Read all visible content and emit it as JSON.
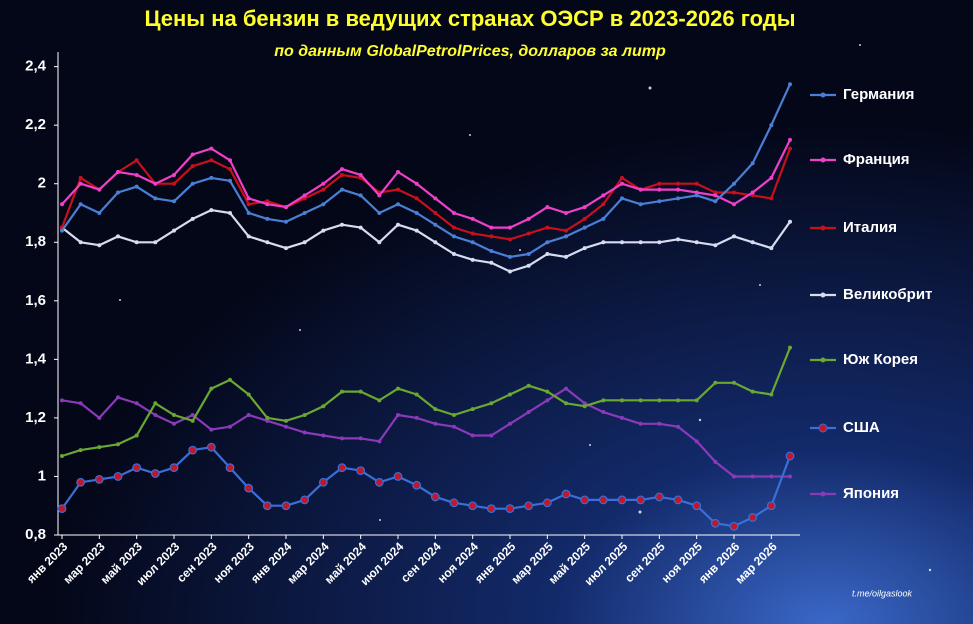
{
  "chart_data": {
    "type": "line",
    "title": "Цены на бензин в ведущих странах ОЭСР в 2023-2026 годы",
    "subtitle": "по данным  GlobalPetrolPrices,  долларов за литр",
    "source": "t.me/oilgaslook",
    "categories": [
      "янв 2023",
      null,
      "мар 2023",
      null,
      "май 2023",
      null,
      "июл 2023",
      null,
      "сен 2023",
      null,
      "ноя 2023",
      null,
      "янв 2024",
      null,
      "мар 2024",
      null,
      "май 2024",
      null,
      "июл 2024",
      null,
      "сен 2024",
      null,
      "ноя 2024",
      null,
      "янв 2025",
      null,
      "мар 2025",
      null,
      "май 2025",
      null,
      "июл 2025",
      null,
      "сен 2025",
      null,
      "ноя 2025",
      null,
      "янв 2026",
      null,
      "мар 2026",
      null
    ],
    "ylim": [
      0.8,
      2.45
    ],
    "yticks": [
      {
        "value": 0.8,
        "label": "0,8"
      },
      1,
      {
        "value": 1.2,
        "label": "1,2"
      },
      {
        "value": 1.4,
        "label": "1,4"
      },
      {
        "value": 1.6,
        "label": "1,6"
      },
      {
        "value": 1.8,
        "label": "1,8"
      },
      2,
      {
        "value": 2.2,
        "label": "2,2"
      },
      {
        "value": 2.4,
        "label": "2,4"
      }
    ],
    "series": [
      {
        "name": "Германия",
        "color": "#4a7fd6",
        "marker_color": "#4a7fd6",
        "values": [
          1.84,
          1.93,
          1.9,
          1.97,
          1.99,
          1.95,
          1.94,
          2.0,
          2.02,
          2.01,
          1.9,
          1.88,
          1.87,
          1.9,
          1.93,
          1.98,
          1.96,
          1.9,
          1.93,
          1.9,
          1.86,
          1.82,
          1.8,
          1.77,
          1.75,
          1.76,
          1.8,
          1.82,
          1.85,
          1.88,
          1.95,
          1.93,
          1.94,
          1.95,
          1.96,
          1.94,
          2.0,
          2.07,
          2.2,
          2.34
        ]
      },
      {
        "name": "Франция",
        "color": "#f040c8",
        "marker_color": "#f040c8",
        "values": [
          1.93,
          2.0,
          1.98,
          2.04,
          2.03,
          2.0,
          2.03,
          2.1,
          2.12,
          2.08,
          1.95,
          1.93,
          1.92,
          1.96,
          2.0,
          2.05,
          2.03,
          1.96,
          2.04,
          2.0,
          1.95,
          1.9,
          1.88,
          1.85,
          1.85,
          1.88,
          1.92,
          1.9,
          1.92,
          1.96,
          2.0,
          1.98,
          1.98,
          1.98,
          1.97,
          1.96,
          1.93,
          1.97,
          2.02,
          2.15
        ]
      },
      {
        "name": "Италия",
        "color": "#c8101c",
        "marker_color": "#c8101c",
        "values": [
          1.85,
          2.02,
          1.98,
          2.04,
          2.08,
          2.0,
          2.0,
          2.06,
          2.08,
          2.05,
          1.93,
          1.94,
          1.92,
          1.95,
          1.98,
          2.03,
          2.02,
          1.97,
          1.98,
          1.95,
          1.9,
          1.85,
          1.83,
          1.82,
          1.81,
          1.83,
          1.85,
          1.84,
          1.88,
          1.93,
          2.02,
          1.98,
          2.0,
          2.0,
          2.0,
          1.97,
          1.97,
          1.96,
          1.95,
          2.12
        ]
      },
      {
        "name": "Великобрит",
        "color": "#d8dcf0",
        "marker_color": "#d8dcf0",
        "values": [
          1.85,
          1.8,
          1.79,
          1.82,
          1.8,
          1.8,
          1.84,
          1.88,
          1.91,
          1.9,
          1.82,
          1.8,
          1.78,
          1.8,
          1.84,
          1.86,
          1.85,
          1.8,
          1.86,
          1.84,
          1.8,
          1.76,
          1.74,
          1.73,
          1.7,
          1.72,
          1.76,
          1.75,
          1.78,
          1.8,
          1.8,
          1.8,
          1.8,
          1.81,
          1.8,
          1.79,
          1.82,
          1.8,
          1.78,
          1.87
        ]
      },
      {
        "name": "Юж Корея",
        "color": "#6aa830",
        "marker_color": "#6aa830",
        "values": [
          1.07,
          1.09,
          1.1,
          1.11,
          1.14,
          1.25,
          1.21,
          1.19,
          1.3,
          1.33,
          1.28,
          1.2,
          1.19,
          1.21,
          1.24,
          1.29,
          1.29,
          1.26,
          1.3,
          1.28,
          1.23,
          1.21,
          1.23,
          1.25,
          1.28,
          1.31,
          1.29,
          1.25,
          1.24,
          1.26,
          1.26,
          1.26,
          1.26,
          1.26,
          1.26,
          1.32,
          1.32,
          1.29,
          1.28,
          1.44
        ]
      },
      {
        "name": "США",
        "color": "#3a6fd8",
        "marker_color": "#c0182a",
        "values": [
          0.89,
          0.98,
          0.99,
          1.0,
          1.03,
          1.01,
          1.03,
          1.09,
          1.1,
          1.03,
          0.96,
          0.9,
          0.9,
          0.92,
          0.98,
          1.03,
          1.02,
          0.98,
          1.0,
          0.97,
          0.93,
          0.91,
          0.9,
          0.89,
          0.89,
          0.9,
          0.91,
          0.94,
          0.92,
          0.92,
          0.92,
          0.92,
          0.93,
          0.92,
          0.9,
          0.84,
          0.83,
          0.86,
          0.9,
          1.07
        ]
      },
      {
        "name": "Япония",
        "color": "#8a3ab8",
        "marker_color": "#8a3ab8",
        "values": [
          1.26,
          1.25,
          1.2,
          1.27,
          1.25,
          1.21,
          1.18,
          1.21,
          1.16,
          1.17,
          1.21,
          1.19,
          1.17,
          1.15,
          1.14,
          1.13,
          1.13,
          1.12,
          1.21,
          1.2,
          1.18,
          1.17,
          1.14,
          1.14,
          1.18,
          1.22,
          1.26,
          1.3,
          1.25,
          1.22,
          1.2,
          1.18,
          1.18,
          1.17,
          1.12,
          1.05,
          1.0,
          1.0,
          1.0,
          1.0
        ]
      }
    ]
  }
}
